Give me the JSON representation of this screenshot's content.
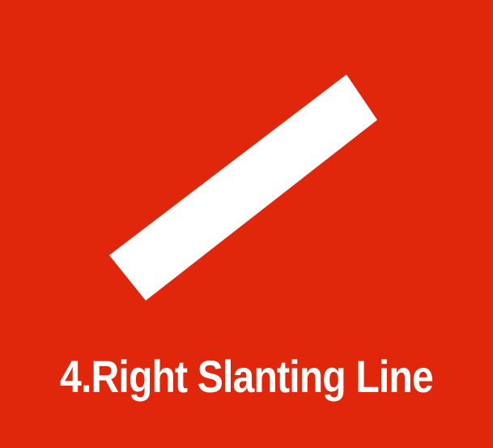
{
  "theme": {
    "background_color": "#E1270B",
    "foreground_color": "#FFFFFF"
  },
  "symbol": {
    "icon": "right-slanting-line-icon"
  },
  "caption": {
    "text": "4.Right Slanting Line"
  }
}
